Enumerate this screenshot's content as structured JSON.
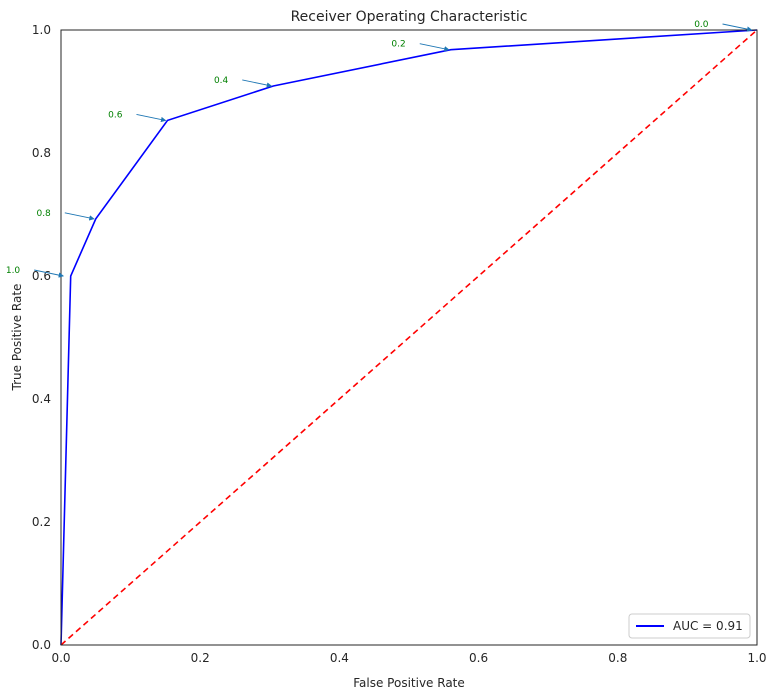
{
  "chart_data": {
    "type": "line",
    "title": "Receiver Operating Characteristic",
    "xlabel": "False Positive Rate",
    "ylabel": "True Positive Rate",
    "xlim": [
      0,
      1
    ],
    "ylim": [
      0,
      1
    ],
    "xticks": [
      "0.0",
      "0.2",
      "0.4",
      "0.6",
      "0.8",
      "1.0"
    ],
    "yticks": [
      "0.0",
      "0.2",
      "0.4",
      "0.6",
      "0.8",
      "1.0"
    ],
    "grid": false,
    "legend_position": "lower-right",
    "series": [
      {
        "name": "AUC = 0.91",
        "color": "#0000ff",
        "style": "solid",
        "x": [
          0.0,
          0.0,
          0.014,
          0.05,
          0.153,
          0.305,
          0.56,
          1.0
        ],
        "y": [
          0.0,
          0.0,
          0.6,
          0.693,
          0.853,
          0.909,
          0.968,
          1.0
        ]
      },
      {
        "color": "#ff0000",
        "style": "dashed",
        "x": [
          0,
          1
        ],
        "y": [
          0,
          1
        ]
      }
    ],
    "annotations": [
      {
        "text": "1.0",
        "x": 0.006,
        "y": 0.6
      },
      {
        "text": "0.8",
        "x": 0.05,
        "y": 0.693
      },
      {
        "text": "0.6",
        "x": 0.153,
        "y": 0.853
      },
      {
        "text": "0.4",
        "x": 0.305,
        "y": 0.909
      },
      {
        "text": "0.2",
        "x": 0.56,
        "y": 0.968
      },
      {
        "text": "0.0",
        "x": 0.995,
        "y": 1.0
      }
    ],
    "annotation_color": "#008000",
    "arrow_color": "#1f77b4"
  }
}
